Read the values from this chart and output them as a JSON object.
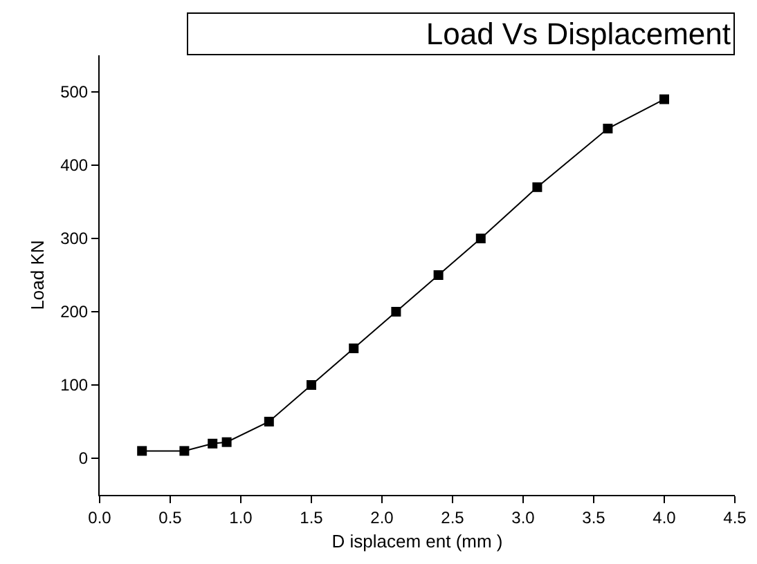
{
  "chart_data": {
    "type": "line",
    "title": "Load Vs Displacement",
    "xlabel": "D isplacem ent (mm )",
    "ylabel": "Load KN",
    "x": [
      0.3,
      0.6,
      0.8,
      0.9,
      1.2,
      1.5,
      1.8,
      2.1,
      2.4,
      2.7,
      3.1,
      3.6,
      4.0
    ],
    "series": [
      {
        "color": "#000000",
        "values": [
          10,
          10,
          20,
          22,
          50,
          100,
          150,
          200,
          250,
          300,
          370,
          450,
          490
        ]
      }
    ],
    "xlim": [
      0,
      4.5
    ],
    "xticks": [
      {
        "value": 0,
        "label": "0.0"
      },
      {
        "value": 0.5,
        "label": "0.5"
      },
      {
        "value": 1,
        "label": "1.0"
      },
      {
        "value": 1.5,
        "label": "1.5"
      },
      {
        "value": 2,
        "label": "2.0"
      },
      {
        "value": 2.5,
        "label": "2.5"
      },
      {
        "value": 3,
        "label": "3.0"
      },
      {
        "value": 3.5,
        "label": "3.5"
      },
      {
        "value": 4,
        "label": "4.0"
      },
      {
        "value": 4.5,
        "label": "4.5"
      }
    ],
    "ylim": [
      -50,
      550
    ],
    "yticks": [
      0,
      100,
      200,
      300,
      400,
      500
    ],
    "grid": false,
    "legend": false,
    "marker": "square",
    "line_style": "solid"
  }
}
